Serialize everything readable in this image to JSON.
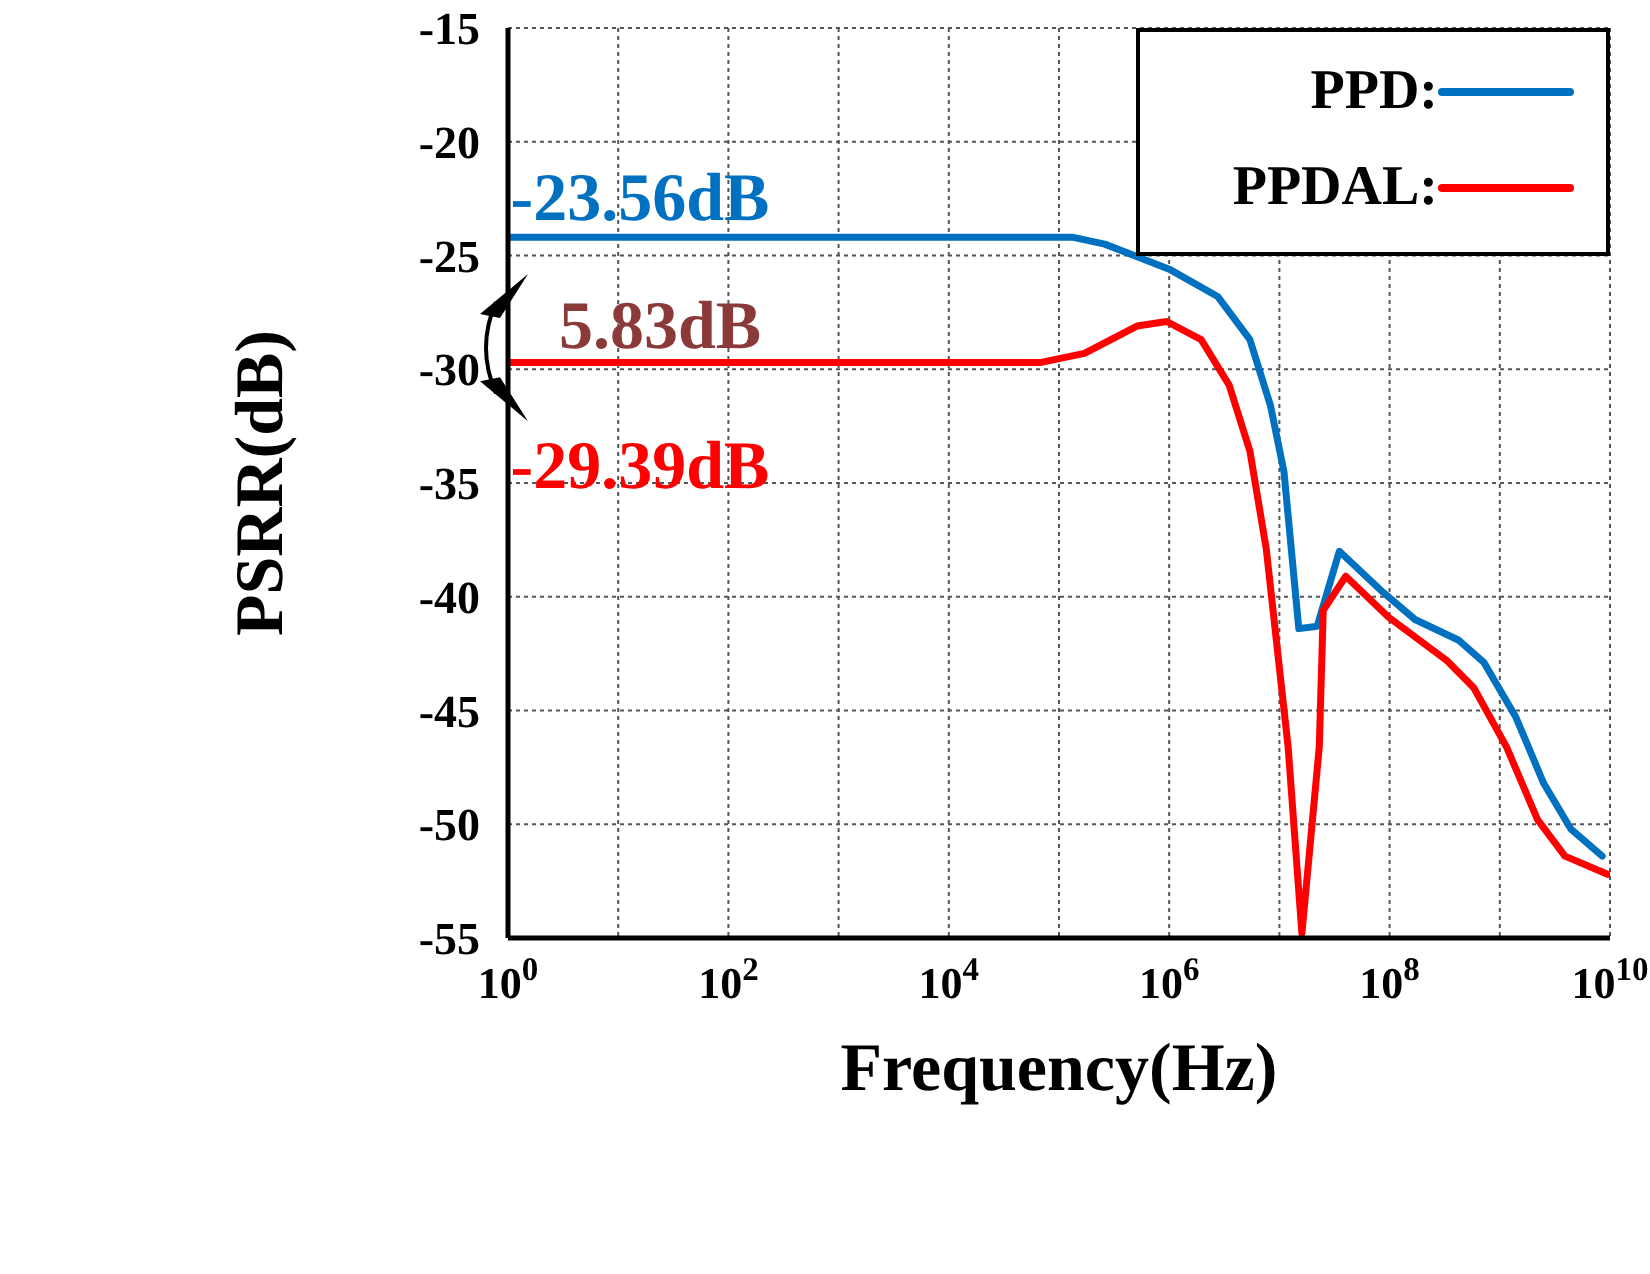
{
  "chart_data": {
    "type": "line",
    "xlabel": "Frequency(Hz)",
    "ylabel": "PSRR(dB)",
    "log": "x",
    "grid": true,
    "legend": "top right",
    "line_style": "solid",
    "marker": "none",
    "xlim": [
      1,
      10000000000
    ],
    "ylim": [
      -55,
      -15
    ],
    "xticks": [
      {
        "value": 1,
        "label": "10$^{0}$"
      },
      {
        "value": 10,
        "label": null
      },
      {
        "value": 100,
        "label": "10$^{2}$"
      },
      {
        "value": 1000,
        "label": null
      },
      {
        "value": 10000,
        "label": "10$^{4}$"
      },
      {
        "value": 100000,
        "label": null
      },
      {
        "value": 1000000,
        "label": "10$^{6}$"
      },
      {
        "value": 10000000,
        "label": null
      },
      {
        "value": 100000000,
        "label": "10$^{8}$"
      },
      {
        "value": 1000000000,
        "label": null
      },
      {
        "value": 10000000000,
        "label": "10$^{10}$"
      }
    ],
    "yticks": [
      -55,
      -50,
      -45,
      -40,
      -35,
      -30,
      -25,
      -20,
      -15
    ],
    "series": [
      {
        "name": "PPD:",
        "color": "#0070c0",
        "x": [
          1,
          135000,
          260000,
          1000000,
          2750000,
          5400000,
          8300000,
          11000000,
          15000000,
          22000000,
          35000000,
          87000000,
          170000000,
          420000000,
          720000000,
          1400000000,
          2500000000,
          4400000000,
          8500000000
        ],
        "values": [
          -24.2,
          -24.2,
          -24.5,
          -25.6,
          -26.8,
          -28.7,
          -31.6,
          -34.5,
          -41.4,
          -41.3,
          -38.0,
          -39.8,
          -41.0,
          -41.9,
          -42.9,
          -45.3,
          -48.2,
          -50.2,
          -51.4
        ]
      },
      {
        "name": "PPDAL:",
        "color": "#ff0000",
        "x": [
          1,
          69000,
          170000,
          510000,
          950000,
          1950000,
          3500000,
          5400000,
          7600000,
          12000000,
          16000000,
          23000000,
          25000000,
          40000000,
          98000000,
          330000000,
          580000000,
          1150000000,
          2200000000,
          3900000000,
          9500000000
        ],
        "values": [
          -29.7,
          -29.7,
          -29.3,
          -28.1,
          -27.9,
          -28.7,
          -30.7,
          -33.6,
          -37.9,
          -46.6,
          -54.8,
          -46.6,
          -40.6,
          -39.1,
          -40.9,
          -42.8,
          -44.0,
          -46.6,
          -49.8,
          -51.4,
          -52.2
        ]
      }
    ],
    "annotations": [
      "-23.56dB",
      "5.83dB",
      "-29.39dB"
    ]
  }
}
